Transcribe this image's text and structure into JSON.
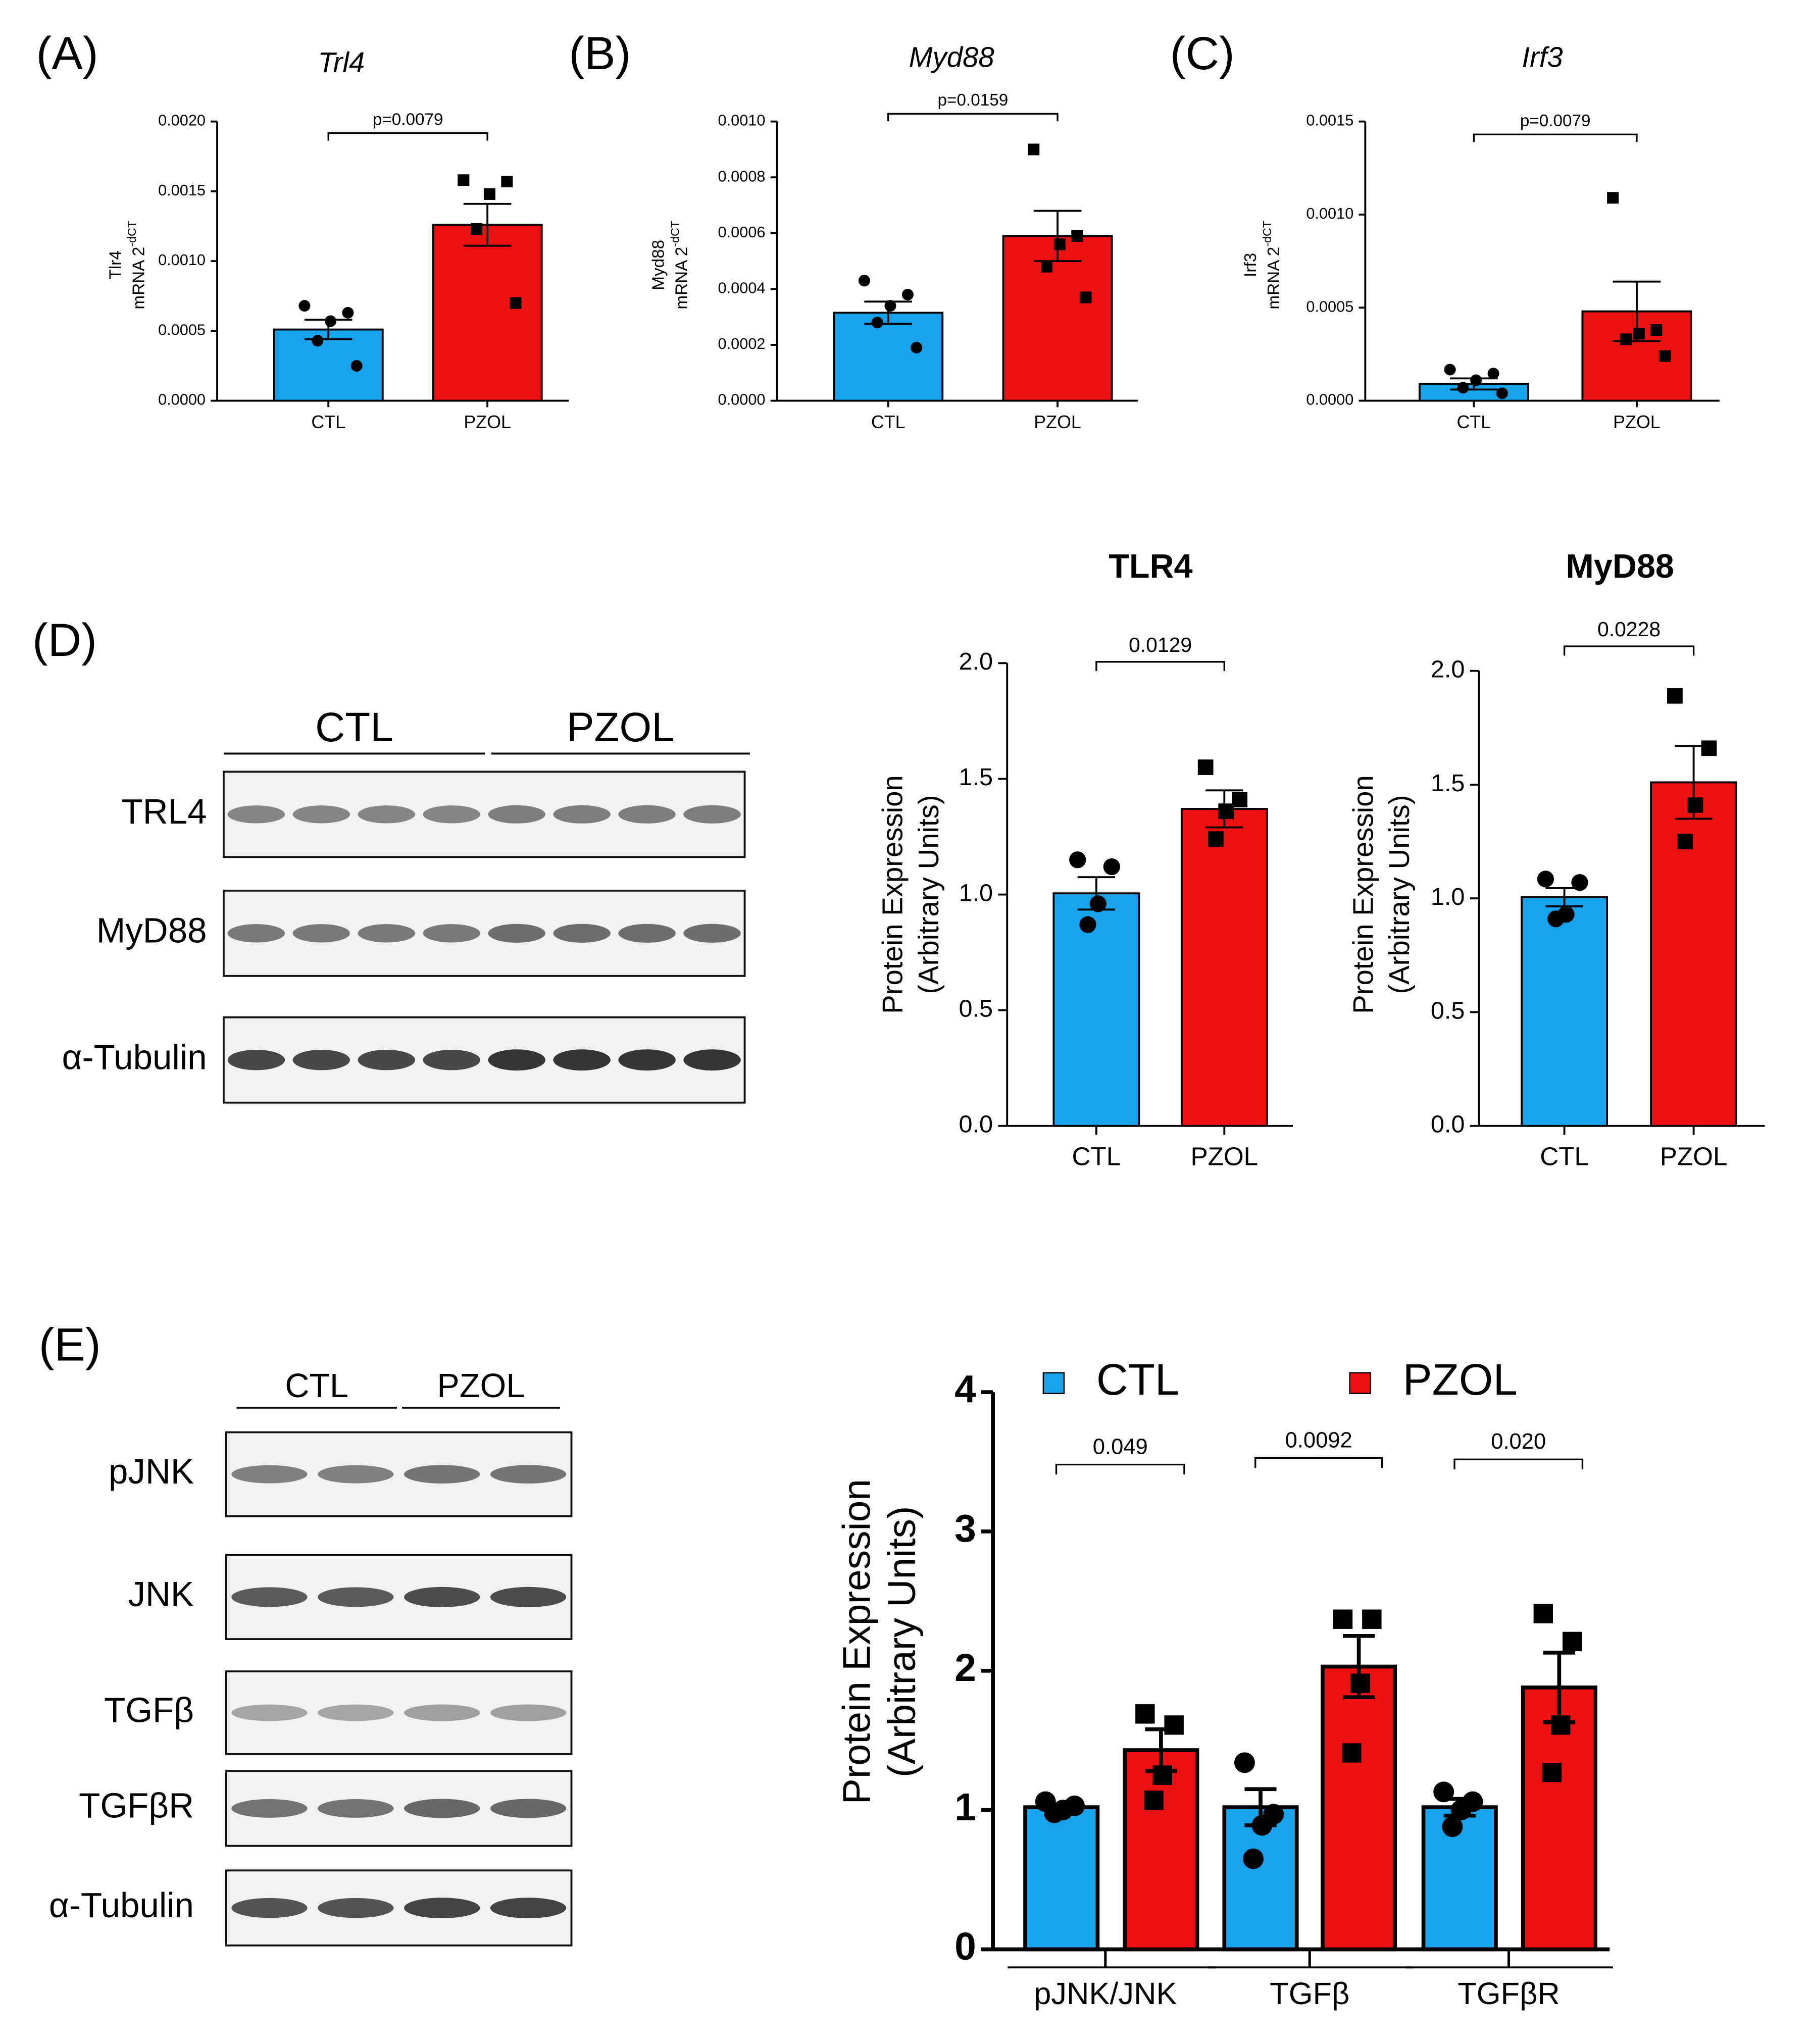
{
  "panel_labels": [
    "(A)",
    "(B)",
    "(C)",
    "(D)",
    "(E)"
  ],
  "blots": [
    {
      "groups": [
        "CTL",
        "PZOL"
      ],
      "rows": [
        "TRL4",
        "MyD88",
        "α-Tubulin"
      ]
    },
    {
      "groups": [
        "CTL",
        "PZOL"
      ],
      "rows": [
        "pJNK",
        "JNK",
        "TGFβ",
        "TGFβR",
        "α-Tubulin"
      ]
    }
  ],
  "chart_data": [
    {
      "type": "bar",
      "title": "Trl4",
      "ylabel": [
        "Tlr4",
        "mRNA 2"
      ],
      "ylabel_superscript": "-dCT",
      "categories": [
        "CTL",
        "PZOL"
      ],
      "values": [
        0.00051,
        0.00126
      ],
      "errors": [
        7e-05,
        0.00015
      ],
      "colors": [
        "#17a3ee",
        "#ee1111"
      ],
      "markers": [
        "circle",
        "square"
      ],
      "points": [
        [
          0.00068,
          0.00063,
          0.00057,
          0.00043,
          0.00025
        ],
        [
          0.00158,
          0.00157,
          0.00148,
          0.00123,
          0.0007
        ]
      ],
      "comparisons": [
        "p=0.0079"
      ],
      "ylim": [
        0,
        0.002
      ],
      "yticks": [
        {
          "value": 0,
          "label": "0.0000"
        },
        0.0005,
        {
          "value": 0.001,
          "label": "0.0010"
        },
        0.0015,
        {
          "value": 0.002,
          "label": "0.0020"
        }
      ]
    },
    {
      "type": "bar",
      "title": "Myd88",
      "ylabel": [
        "Myd88",
        "mRNA 2"
      ],
      "ylabel_superscript": "-dCT",
      "categories": [
        "CTL",
        "PZOL"
      ],
      "values": [
        0.000315,
        0.00059
      ],
      "errors": [
        4e-05,
        9e-05
      ],
      "colors": [
        "#17a3ee",
        "#ee1111"
      ],
      "markers": [
        "circle",
        "square"
      ],
      "points": [
        [
          0.00043,
          0.00038,
          0.00034,
          0.00028,
          0.00019
        ],
        [
          0.0009,
          0.00059,
          0.00056,
          0.00048,
          0.00037
        ]
      ],
      "comparisons": [
        "p=0.0159"
      ],
      "ylim": [
        0,
        0.001
      ],
      "yticks": [
        {
          "value": 0,
          "label": "0.0000"
        },
        0.0002,
        0.0004,
        0.0006,
        0.0008,
        {
          "value": 0.001,
          "label": "0.0010"
        }
      ]
    },
    {
      "type": "bar",
      "title": "Irf3",
      "ylabel": [
        "Irf3",
        "mRNA 2"
      ],
      "ylabel_superscript": "-dCT",
      "categories": [
        "CTL",
        "PZOL"
      ],
      "values": [
        9e-05,
        0.00048
      ],
      "errors": [
        3e-05,
        0.00016
      ],
      "colors": [
        "#17a3ee",
        "#ee1111"
      ],
      "markers": [
        "circle",
        "square"
      ],
      "points": [
        [
          0.000167,
          0.000146,
          0.00011,
          7e-05,
          4e-05
        ],
        [
          0.00109,
          0.00038,
          0.00036,
          0.00033,
          0.00024
        ]
      ],
      "comparisons": [
        "p=0.0079"
      ],
      "ylim": [
        0,
        0.0015
      ],
      "yticks": [
        {
          "value": 0,
          "label": "0.0000"
        },
        0.0005,
        {
          "value": 0.001,
          "label": "0.0010"
        },
        0.0015
      ]
    },
    {
      "type": "bar",
      "title": "TLR4",
      "ylabel": [
        "Protein Expression",
        "(Arbitrary Units)"
      ],
      "categories": [
        "CTL",
        "PZOL"
      ],
      "values": [
        1.005,
        1.37
      ],
      "errors": [
        0.07,
        0.08
      ],
      "colors": [
        "#17a3ee",
        "#ee1111"
      ],
      "markers": [
        "circle",
        "square"
      ],
      "points": [
        [
          1.15,
          1.12,
          0.96,
          0.87
        ],
        [
          1.55,
          1.41,
          1.36,
          1.24
        ]
      ],
      "comparisons": [
        "0.0129"
      ],
      "ylim": [
        0,
        2
      ],
      "yticks": [
        {
          "value": 0,
          "label": "0.0"
        },
        0.5,
        {
          "value": 1,
          "label": "1.0"
        },
        1.5,
        {
          "value": 2,
          "label": "2.0"
        }
      ]
    },
    {
      "type": "bar",
      "title": "MyD88",
      "ylabel": [
        "Protein Expression",
        "(Arbitrary Units)"
      ],
      "categories": [
        "CTL",
        "PZOL"
      ],
      "values": [
        1.005,
        1.51
      ],
      "errors": [
        0.04,
        0.16
      ],
      "colors": [
        "#17a3ee",
        "#ee1111"
      ],
      "markers": [
        "circle",
        "square"
      ],
      "points": [
        [
          1.085,
          1.07,
          0.93,
          0.91
        ],
        [
          1.89,
          1.66,
          1.41,
          1.25
        ]
      ],
      "comparisons": [
        "0.0228"
      ],
      "ylim": [
        0,
        2
      ],
      "yticks": [
        {
          "value": 0,
          "label": "0.0"
        },
        0.5,
        {
          "value": 1,
          "label": "1.0"
        },
        1.5,
        {
          "value": 2,
          "label": "2.0"
        }
      ]
    },
    {
      "type": "grouped_bar",
      "ylabel": [
        "Protein Expression",
        "(Arbitrary Units)"
      ],
      "categories": [
        "pJNK/JNK",
        "TGFβ",
        "TGFβR"
      ],
      "series": [
        {
          "name": "CTL",
          "color": "#17a3ee",
          "marker": "circle",
          "values": [
            1.02,
            1.02,
            1.02
          ],
          "errors": [
            0.02,
            0.13,
            0.06
          ],
          "points": [
            [
              1.06,
              1.03,
              1.0,
              0.98
            ],
            [
              1.34,
              0.97,
              0.89,
              0.65
            ],
            [
              1.13,
              1.06,
              1.0,
              0.88
            ]
          ]
        },
        {
          "name": "PZOL",
          "color": "#ee1111",
          "marker": "square",
          "values": [
            1.43,
            2.03,
            1.88
          ],
          "errors": [
            0.15,
            0.22,
            0.25
          ],
          "points": [
            [
              1.69,
              1.61,
              1.25,
              1.07
            ],
            [
              2.37,
              2.37,
              1.91,
              1.41
            ],
            [
              2.41,
              2.21,
              1.61,
              1.27
            ]
          ]
        }
      ],
      "comparisons": [
        "0.049",
        "0.0092",
        "0.020"
      ],
      "ylim": [
        0,
        4
      ],
      "yticks": [
        0,
        1,
        2,
        3,
        4
      ]
    }
  ]
}
